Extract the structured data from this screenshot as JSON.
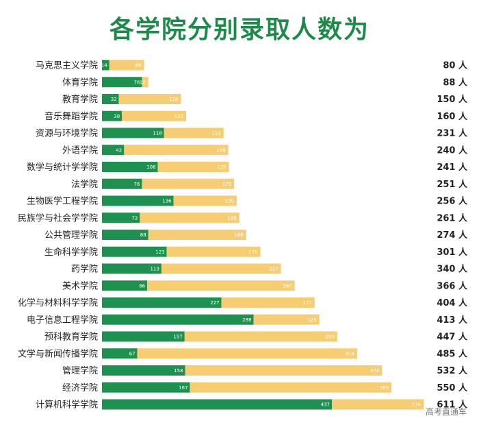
{
  "chart_data": {
    "type": "bar",
    "orientation": "horizontal",
    "stacked": true,
    "title": "各学院分别录取人数为",
    "total_suffix": "人",
    "categories": [
      "马克思主义学院",
      "体育学院",
      "教育学院",
      "音乐舞蹈学院",
      "资源与环境学院",
      "外语学院",
      "数学与统计学学院",
      "法学院",
      "生物医学工程学院",
      "民族学与社会学学院",
      "公共管理学院",
      "生命科学学院",
      "药学院",
      "美术学院",
      "化学与材料科学学院",
      "电子信息工程学院",
      "预科教育学院",
      "文学与新闻传播学院",
      "管理学院",
      "经济学院",
      "计算机科学学院"
    ],
    "series": [
      {
        "values": [
          14,
          76,
          32,
          38,
          118,
          42,
          106,
          76,
          136,
          72,
          88,
          123,
          113,
          86,
          227,
          288,
          157,
          67,
          158,
          167,
          437
        ]
      },
      {
        "values": [
          66,
          12,
          118,
          122,
          113,
          198,
          135,
          175,
          120,
          189,
          186,
          178,
          227,
          280,
          177,
          125,
          290,
          418,
          374,
          383,
          174
        ]
      }
    ],
    "totals": [
      80,
      88,
      150,
      160,
      231,
      240,
      241,
      251,
      256,
      261,
      274,
      301,
      340,
      366,
      404,
      413,
      447,
      485,
      532,
      550,
      611
    ],
    "colors": {
      "series_1": "#1e9150",
      "series_2": "#f7cd73",
      "title": "#1e8a4a"
    },
    "legend": "none",
    "grid": false
  },
  "watermark": "高考直通车"
}
